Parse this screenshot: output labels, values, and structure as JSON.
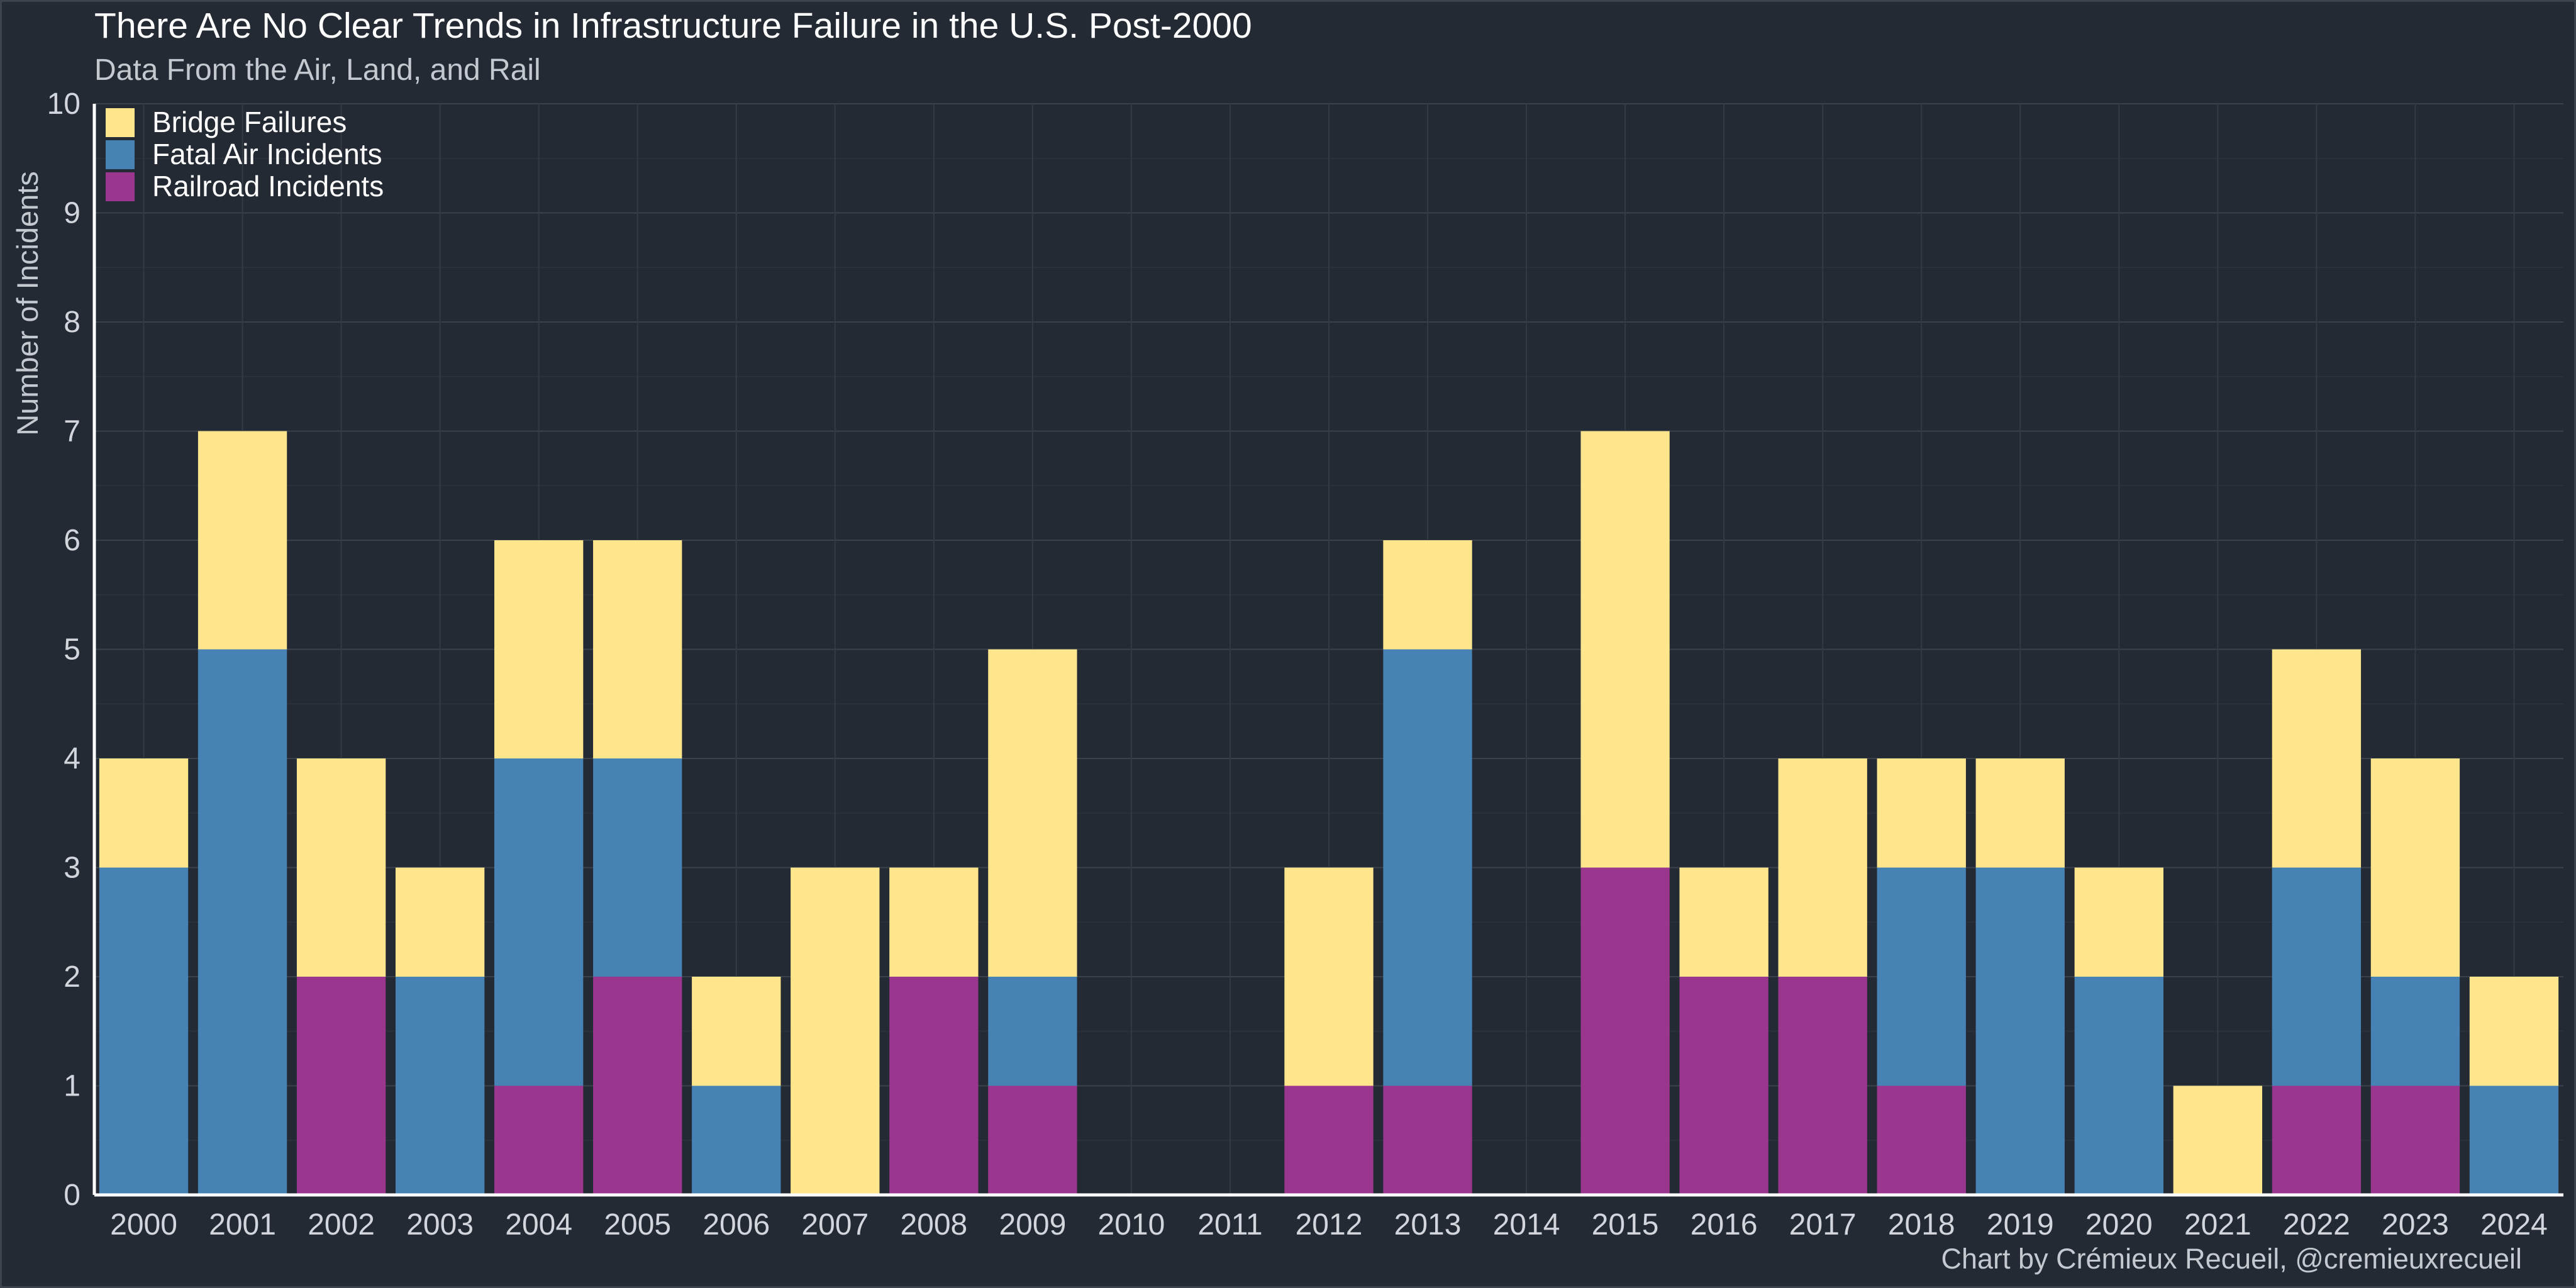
{
  "chart_data": {
    "type": "bar",
    "stacked": true,
    "title": "There Are No Clear Trends in Infrastructure Failure in the U.S. Post-2000",
    "subtitle": "Data From the Air, Land, and Rail",
    "xlabel": "",
    "ylabel": "Number of Incidents",
    "ylim": [
      0,
      10
    ],
    "yticks": [
      0,
      1,
      2,
      3,
      4,
      5,
      6,
      7,
      8,
      9,
      10
    ],
    "grid": true,
    "legend": "top-left",
    "credit": "Chart by Crémieux Recueil, @cremieuxrecueil",
    "categories": [
      "2000",
      "2001",
      "2002",
      "2003",
      "2004",
      "2005",
      "2006",
      "2007",
      "2008",
      "2009",
      "2010",
      "2011",
      "2012",
      "2013",
      "2014",
      "2015",
      "2016",
      "2017",
      "2018",
      "2019",
      "2020",
      "2021",
      "2022",
      "2023",
      "2024"
    ],
    "series": [
      {
        "name": "Railroad Incidents",
        "color": "#9b368f",
        "values": [
          0,
          0,
          2,
          0,
          1,
          2,
          0,
          0,
          2,
          1,
          0,
          0,
          1,
          1,
          0,
          3,
          2,
          2,
          1,
          0,
          0,
          0,
          1,
          1,
          0
        ]
      },
      {
        "name": "Fatal Air Incidents",
        "color": "#4682b4",
        "values": [
          3,
          5,
          0,
          2,
          3,
          2,
          1,
          0,
          0,
          1,
          0,
          0,
          0,
          4,
          0,
          0,
          0,
          0,
          2,
          3,
          2,
          0,
          2,
          1,
          1
        ]
      },
      {
        "name": "Bridge Failures",
        "color": "#ffe68c",
        "values": [
          1,
          2,
          2,
          1,
          2,
          2,
          1,
          3,
          1,
          3,
          0,
          0,
          2,
          1,
          0,
          4,
          1,
          2,
          1,
          1,
          1,
          1,
          2,
          2,
          1
        ]
      }
    ],
    "legend_order": [
      "Bridge Failures",
      "Fatal Air Incidents",
      "Railroad Incidents"
    ]
  }
}
